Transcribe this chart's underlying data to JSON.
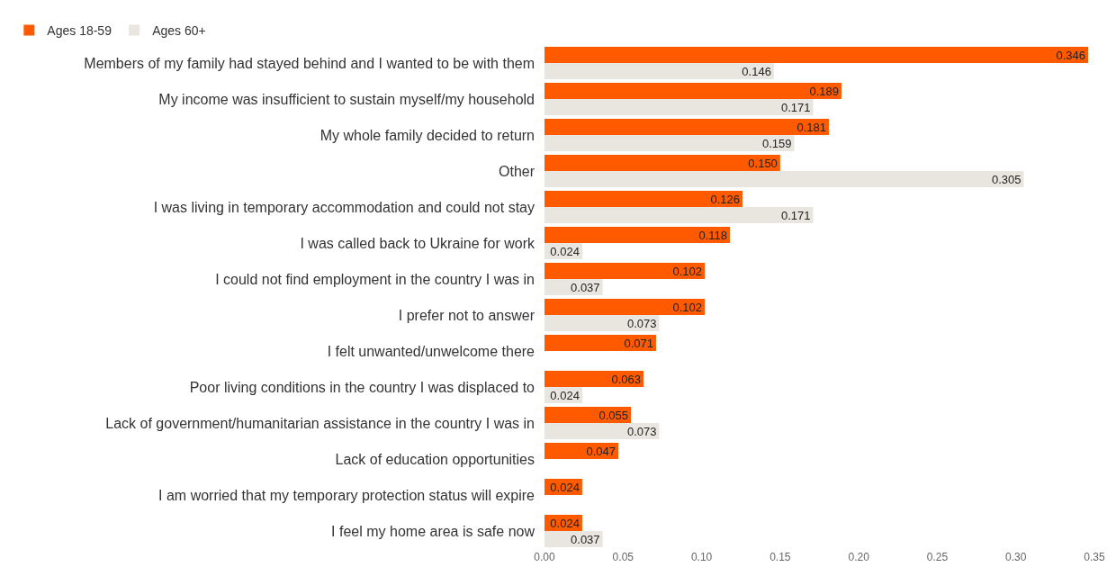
{
  "chart_data": {
    "type": "bar",
    "orientation": "horizontal",
    "legend": "top left",
    "categories": [
      "Members of my family had stayed behind and I wanted to be with them",
      "My income was insufficient to sustain myself/my household",
      "My whole family decided to return",
      "Other",
      "I was living in temporary accommodation and could not stay",
      "I was called back to Ukraine for work",
      "I could not find employment in the country I was in",
      "I prefer not to answer",
      "I felt unwanted/unwelcome there",
      "Poor living conditions in the country I was displaced to",
      "Lack of government/humanitarian assistance in the country I was in",
      "Lack of education opportunities",
      "I am worried that my temporary protection status will expire",
      "I feel my home area is safe now"
    ],
    "series": [
      {
        "name": "Ages 18-59",
        "color": "#ff5a00",
        "values": [
          0.346,
          0.189,
          0.181,
          0.15,
          0.126,
          0.118,
          0.102,
          0.102,
          0.071,
          0.063,
          0.055,
          0.047,
          0.024,
          0.024
        ],
        "value_labels": [
          "0.346",
          "0.189",
          "0.181",
          "0.150",
          "0.126",
          "0.118",
          "0.102",
          "0.102",
          "0.071",
          "0.063",
          "0.055",
          "0.047",
          "0.024",
          "0.024"
        ]
      },
      {
        "name": "Ages 60+",
        "color": "#e8e6df",
        "values": [
          0.146,
          0.171,
          0.159,
          0.305,
          0.171,
          0.024,
          0.037,
          0.073,
          null,
          0.024,
          0.073,
          null,
          null,
          0.037
        ],
        "value_labels": [
          "0.146",
          "0.171",
          "0.159",
          "0.305",
          "0.171",
          "0.024",
          "0.037",
          "0.073",
          null,
          "0.024",
          "0.073",
          null,
          null,
          "0.037"
        ]
      }
    ],
    "xlim": [
      0,
      0.35
    ],
    "xticks": [
      {
        "value": 0,
        "label": "0.00"
      },
      {
        "value": 0.05,
        "label": "0.05"
      },
      {
        "value": 0.1,
        "label": "0.10"
      },
      {
        "value": 0.15,
        "label": "0.15"
      },
      {
        "value": 0.2,
        "label": "0.20"
      },
      {
        "value": 0.25,
        "label": "0.25"
      },
      {
        "value": 0.3,
        "label": "0.30"
      },
      {
        "value": 0.35,
        "label": "0.35"
      }
    ]
  }
}
